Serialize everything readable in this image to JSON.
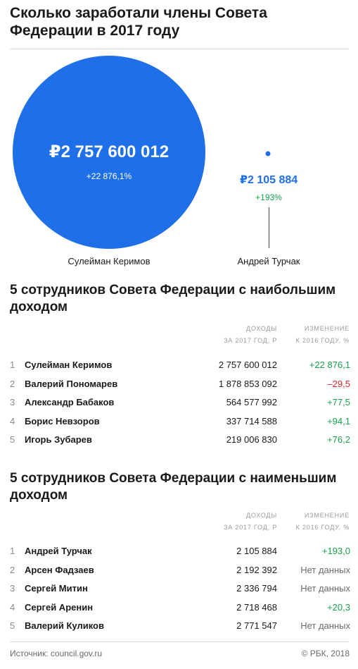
{
  "title": "Сколько заработали члены Совета Федерации в 2017 году",
  "colors": {
    "accent": "#1f6fe9",
    "positive": "#17a34a",
    "negative": "#e02a2a",
    "muted": "#9a9a9a"
  },
  "chart_data": [
    {
      "type": "bubble",
      "title": "",
      "series": [
        {
          "name": "Сулейман Керимов",
          "value": 2757600012,
          "value_label": "₽2 757 600 012",
          "change_label": "+22 876,1%"
        },
        {
          "name": "Андрей Турчак",
          "value": 2105884,
          "value_label": "₽2 105 884",
          "change_label": "+193%"
        }
      ]
    },
    {
      "type": "table",
      "title": "5 сотрудников Совета Федерации с наибольшим доходом",
      "columns": {
        "income_l1": "ДОХОДЫ",
        "income_l2": "ЗА 2017 ГОД, Р",
        "change_l1": "ИЗМЕНЕНИЕ",
        "change_l2": "К 2016 ГОДУ, %"
      },
      "rows": [
        {
          "rank": "1",
          "name": "Сулейман Керимов",
          "income": "2 757 600 012",
          "change": "+22 876,1",
          "status": "pos"
        },
        {
          "rank": "2",
          "name": "Валерий Пономарев",
          "income": "1 878 853 092",
          "change": "–29,5",
          "status": "neg"
        },
        {
          "rank": "3",
          "name": "Александр Бабаков",
          "income": "564 577 992",
          "change": "+77,5",
          "status": "pos"
        },
        {
          "rank": "4",
          "name": "Борис Невзоров",
          "income": "337 714 588",
          "change": "+94,1",
          "status": "pos"
        },
        {
          "rank": "5",
          "name": "Игорь Зубарев",
          "income": "219 006 830",
          "change": "+76,2",
          "status": "pos"
        }
      ]
    },
    {
      "type": "table",
      "title": "5 сотрудников Совета Федерации с наименьшим доходом",
      "columns": {
        "income_l1": "ДОХОДЫ",
        "income_l2": "ЗА 2017 ГОД, Р",
        "change_l1": "ИЗМЕНЕНИЕ",
        "change_l2": "К 2016 ГОДУ, %"
      },
      "rows": [
        {
          "rank": "1",
          "name": "Андрей Турчак",
          "income": "2 105 884",
          "change": "+193,0",
          "status": "pos"
        },
        {
          "rank": "2",
          "name": "Арсен Фадзаев",
          "income": "2 192 392",
          "change": "Нет данных",
          "status": "nd"
        },
        {
          "rank": "3",
          "name": "Сергей Митин",
          "income": "2 336 794",
          "change": "Нет данных",
          "status": "nd"
        },
        {
          "rank": "4",
          "name": "Сергей Аренин",
          "income": "2 718 468",
          "change": "+20,3",
          "status": "pos"
        },
        {
          "rank": "5",
          "name": "Валерий Куликов",
          "income": "2 771 547",
          "change": "Нет данных",
          "status": "nd"
        }
      ]
    }
  ],
  "footer": {
    "source": "Источник: council.gov.ru",
    "copyright": "© РБК, 2018"
  }
}
